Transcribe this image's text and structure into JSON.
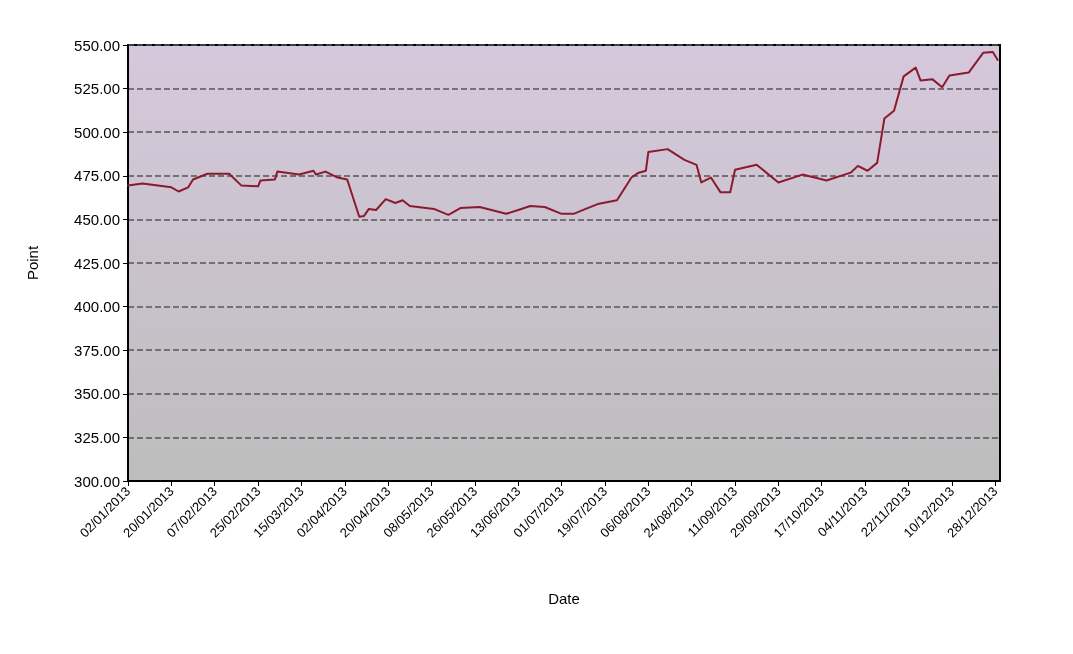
{
  "chart_data": {
    "type": "line",
    "xlabel": "Date",
    "ylabel": "Point",
    "x": [
      "2013-01-02",
      "2013-01-08",
      "2013-01-20",
      "2013-01-23",
      "2013-01-27",
      "2013-01-29",
      "2013-02-04",
      "2013-02-13",
      "2013-02-18",
      "2013-02-25",
      "2013-02-26",
      "2013-03-04",
      "2013-03-05",
      "2013-03-14",
      "2013-03-20",
      "2013-03-21",
      "2013-03-25",
      "2013-03-30",
      "2013-04-03",
      "2013-04-08",
      "2013-04-10",
      "2013-04-12",
      "2013-04-15",
      "2013-04-19",
      "2013-04-23",
      "2013-04-26",
      "2013-04-29",
      "2013-05-09",
      "2013-05-15",
      "2013-05-20",
      "2013-05-28",
      "2013-06-08",
      "2013-06-13",
      "2013-06-18",
      "2013-06-24",
      "2013-07-01",
      "2013-07-06",
      "2013-07-11",
      "2013-07-16",
      "2013-07-24",
      "2013-07-30",
      "2013-08-02",
      "2013-08-05",
      "2013-08-06",
      "2013-08-14",
      "2013-08-21",
      "2013-08-26",
      "2013-08-28",
      "2013-09-01",
      "2013-09-05",
      "2013-09-09",
      "2013-09-11",
      "2013-09-20",
      "2013-09-29",
      "2013-10-09",
      "2013-10-19",
      "2013-10-29",
      "2013-11-01",
      "2013-11-05",
      "2013-11-09",
      "2013-11-12",
      "2013-11-16",
      "2013-11-20",
      "2013-11-25",
      "2013-11-27",
      "2013-12-02",
      "2013-12-06",
      "2013-12-09",
      "2013-12-17",
      "2013-12-23",
      "2013-12-27",
      "2013-12-29"
    ],
    "series": [
      {
        "color": "#8b1a2e",
        "values": [
          469.5,
          470.6,
          468.4,
          466,
          468.4,
          472.9,
          476.2,
          476.2,
          469.5,
          469,
          472.3,
          472.9,
          477.4,
          475.7,
          477.9,
          475.7,
          477.4,
          474,
          472.9,
          451.5,
          452,
          456,
          455.4,
          461.6,
          459.4,
          461,
          457.7,
          456,
          452.6,
          456.5,
          457.1,
          453.2,
          455.4,
          457.7,
          457.1,
          453.2,
          453.2,
          456,
          458.8,
          461,
          474,
          476.8,
          477.9,
          488.6,
          490.3,
          484.1,
          481.3,
          471.2,
          474,
          465.5,
          465.5,
          478.5,
          481.3,
          471.2,
          475.7,
          472.3,
          476.8,
          480.7,
          477.9,
          482.4,
          507.8,
          512.3,
          532,
          537,
          529.7,
          530.3,
          525.8,
          532.5,
          534.2,
          545.5,
          546,
          541.5
        ]
      }
    ],
    "xlim": [
      "2013-01-02",
      "2013-12-30"
    ],
    "xticks": [
      {
        "value": "2013-01-02",
        "label": "02/01/2013"
      },
      {
        "value": "2013-01-20",
        "label": "20/01/2013"
      },
      {
        "value": "2013-02-07",
        "label": "07/02/2013"
      },
      {
        "value": "2013-02-25",
        "label": "25/02/2013"
      },
      {
        "value": "2013-03-15",
        "label": "15/03/2013"
      },
      {
        "value": "2013-04-02",
        "label": "02/04/2013"
      },
      {
        "value": "2013-04-20",
        "label": "20/04/2013"
      },
      {
        "value": "2013-05-08",
        "label": "08/05/2013"
      },
      {
        "value": "2013-05-26",
        "label": "26/05/2013"
      },
      {
        "value": "2013-06-13",
        "label": "13/06/2013"
      },
      {
        "value": "2013-07-01",
        "label": "01/07/2013"
      },
      {
        "value": "2013-07-19",
        "label": "19/07/2013"
      },
      {
        "value": "2013-08-06",
        "label": "06/08/2013"
      },
      {
        "value": "2013-08-24",
        "label": "24/08/2013"
      },
      {
        "value": "2013-09-11",
        "label": "11/09/2013"
      },
      {
        "value": "2013-09-29",
        "label": "29/09/2013"
      },
      {
        "value": "2013-10-17",
        "label": "17/10/2013"
      },
      {
        "value": "2013-11-04",
        "label": "04/11/2013"
      },
      {
        "value": "2013-11-22",
        "label": "22/11/2013"
      },
      {
        "value": "2013-12-10",
        "label": "10/12/2013"
      },
      {
        "value": "2013-12-28",
        "label": "28/12/2013"
      }
    ],
    "ylim": [
      300,
      550
    ],
    "yticks": [
      {
        "value": 300,
        "label": "300.00"
      },
      {
        "value": 325,
        "label": "325.00"
      },
      {
        "value": 350,
        "label": "350.00"
      },
      {
        "value": 375,
        "label": "375.00"
      },
      {
        "value": 400,
        "label": "400.00"
      },
      {
        "value": 425,
        "label": "425.00"
      },
      {
        "value": 450,
        "label": "450.00"
      },
      {
        "value": 475,
        "label": "475.00"
      },
      {
        "value": 500,
        "label": "500.00"
      },
      {
        "value": 525,
        "label": "525.00"
      },
      {
        "value": 550,
        "label": "550.00"
      }
    ],
    "grid": "y",
    "marker": "none",
    "line_style": "solid"
  }
}
